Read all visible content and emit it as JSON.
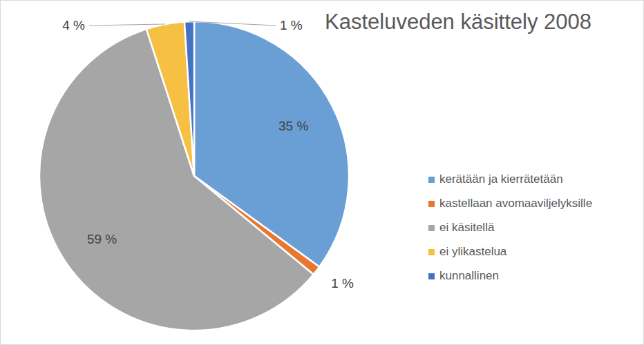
{
  "chart_data": {
    "type": "pie",
    "title": "Kasteluveden käsittely 2008",
    "categories": [
      "kerätään ja kierrätetään",
      "kastellaan avomaaviljelyksille",
      "ei käsitellä",
      "ei ylikastelua",
      "kunnallinen"
    ],
    "values": [
      35,
      1,
      59,
      4,
      1
    ],
    "value_labels": [
      "35 %",
      "1 %",
      "59 %",
      "4 %",
      "1 %"
    ],
    "colors": [
      "#6a9fd6",
      "#e8782f",
      "#a6a6a6",
      "#f6c142",
      "#4472c4"
    ],
    "data_labels": true,
    "legend": "right"
  }
}
